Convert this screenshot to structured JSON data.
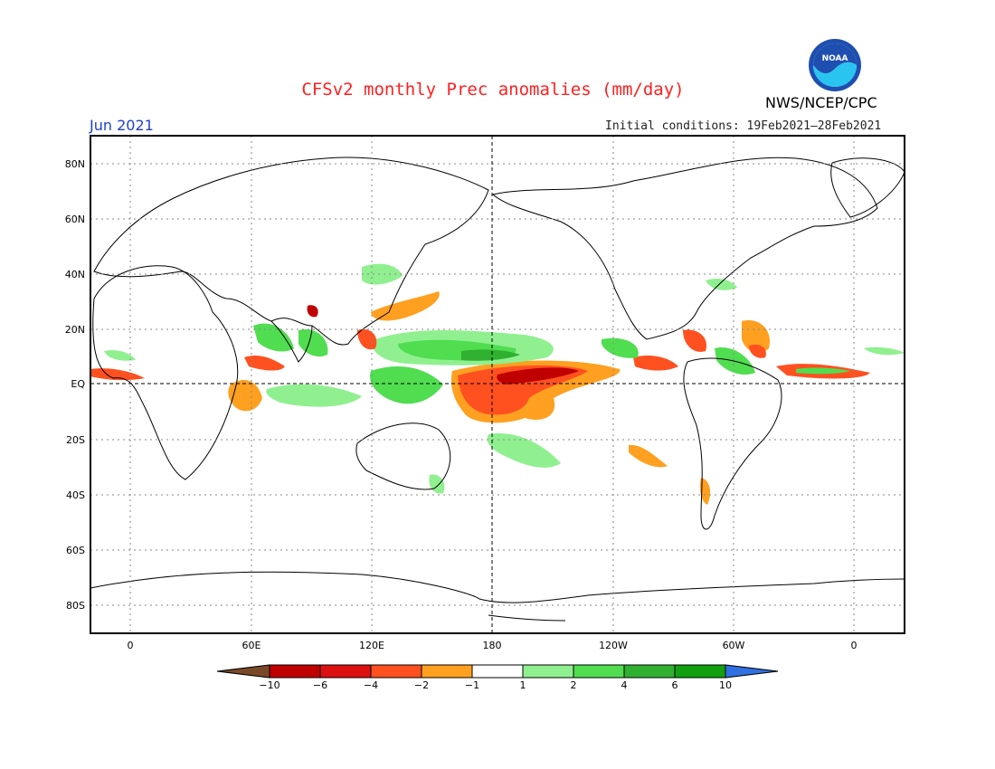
{
  "header": {
    "title": "CFSv2 monthly Prec anomalies (mm/day)",
    "agency": "NWS/NCEP/CPC",
    "month": "Jun 2021",
    "initial_conditions": "Initial conditions: 19Feb2021–28Feb2021",
    "logo_text": "NOAA"
  },
  "map": {
    "lat_ticks": [
      "80N",
      "60N",
      "40N",
      "20N",
      "EQ",
      "20S",
      "40S",
      "60S",
      "80S"
    ],
    "lon_ticks": [
      "0",
      "60E",
      "120E",
      "180",
      "120W",
      "60W",
      "0"
    ]
  },
  "colorbar": {
    "labels": [
      "−10",
      "−6",
      "−4",
      "−2",
      "−1",
      "1",
      "2",
      "4",
      "6",
      "10"
    ],
    "colors": [
      "#7a4a28",
      "#c00000",
      "#dd1010",
      "#ff5020",
      "#ffa020",
      "#ffffff",
      "#90f090",
      "#50dd50",
      "#30b030",
      "#10a010",
      "#3070e0"
    ]
  }
}
